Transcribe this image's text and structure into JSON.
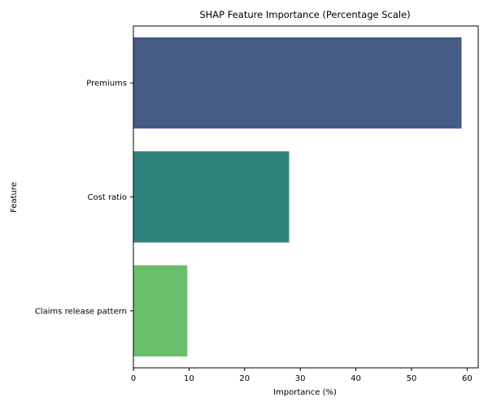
{
  "chart_data": {
    "type": "bar",
    "orientation": "horizontal",
    "title": "SHAP Feature Importance (Percentage Scale)",
    "xlabel": "Importance (%)",
    "ylabel": "Feature",
    "categories": [
      "Premiums",
      "Cost ratio",
      "Claims release pattern"
    ],
    "values": [
      59,
      28,
      9.7
    ],
    "colors": [
      "#455a84",
      "#2e837d",
      "#6bbf6b"
    ],
    "xlim": [
      0,
      62
    ],
    "xticks": [
      0,
      10,
      20,
      30,
      40,
      50,
      60
    ],
    "grid": false,
    "legend": "none"
  }
}
